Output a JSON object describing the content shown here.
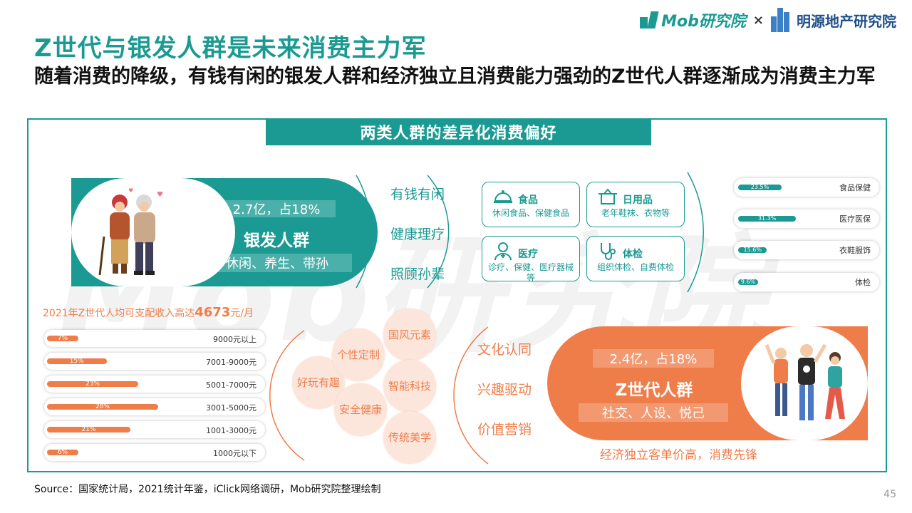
{
  "header": {
    "title": "Z世代与银发人群是未来消费主力军",
    "subtitle": "随着消费的降级，有钱有闲的银发人群和经济独立且消费能力强劲的Z世代人群逐渐成为消费主力军",
    "logo_mob": "Mob研究院",
    "logo_separator": "×",
    "logo_partner": "明源地产研究院"
  },
  "section_title": "两类人群的差异化消费偏好",
  "watermark": "Mob研究院",
  "silver": {
    "stat": "2.7亿，占18%",
    "name": "银发人群",
    "tags": "休闲、养生、带孙",
    "traits": [
      "有钱有闲",
      "健康理疗",
      "照顾孙辈"
    ],
    "categories": [
      {
        "icon": "food-cloche-icon",
        "title": "食品",
        "desc": "休闲食品、保健食品"
      },
      {
        "icon": "daily-goods-icon",
        "title": "日用品",
        "desc": "老年鞋袜、衣物等"
      },
      {
        "icon": "doctor-icon",
        "title": "医疗",
        "desc": "诊疗、保健、医疗器械等"
      },
      {
        "icon": "stethoscope-icon",
        "title": "体检",
        "desc": "组织体检、自费体检"
      }
    ],
    "preferences": [
      {
        "label": "食品保健",
        "value": 23.5,
        "text": "23.5%"
      },
      {
        "label": "医疗医保",
        "value": 31.3,
        "text": "31.3%"
      },
      {
        "label": "衣鞋服饰",
        "value": 15.6,
        "text": "15.6%"
      },
      {
        "label": "体检",
        "value": 9.6,
        "text": "9.6%"
      }
    ]
  },
  "income": {
    "title_prefix": "2021年Z世代人均可支配收入高达",
    "title_value": "4673",
    "title_suffix": "元/月",
    "rows": [
      {
        "label": "9000元以上",
        "value": 7,
        "text": "7%"
      },
      {
        "label": "7001-9000元",
        "value": 15,
        "text": "15%"
      },
      {
        "label": "5001-7000元",
        "value": 23,
        "text": "23%"
      },
      {
        "label": "3001-5000元",
        "value": 28,
        "text": "28%"
      },
      {
        "label": "1001-3000元",
        "value": 21,
        "text": "21%"
      },
      {
        "label": "1000元以下",
        "value": 6,
        "text": "6%"
      }
    ]
  },
  "genz": {
    "bubbles": [
      "好玩有趣",
      "个性定制",
      "国风元素",
      "安全健康",
      "智能科技",
      "传统美学"
    ],
    "traits": [
      "文化认同",
      "兴趣驱动",
      "价值营销"
    ],
    "stat": "2.4亿，占18%",
    "name": "Z世代人群",
    "tags": "社交、人设、悦己",
    "footnote": "经济独立客单价高，消费先锋"
  },
  "colors": {
    "teal": "#1a9a93",
    "orange": "#ef7d4a"
  },
  "source": "Source：国家统计局，2021统计年鉴，iClick网络调研，Mob研究院整理绘制",
  "page_number": "45"
}
